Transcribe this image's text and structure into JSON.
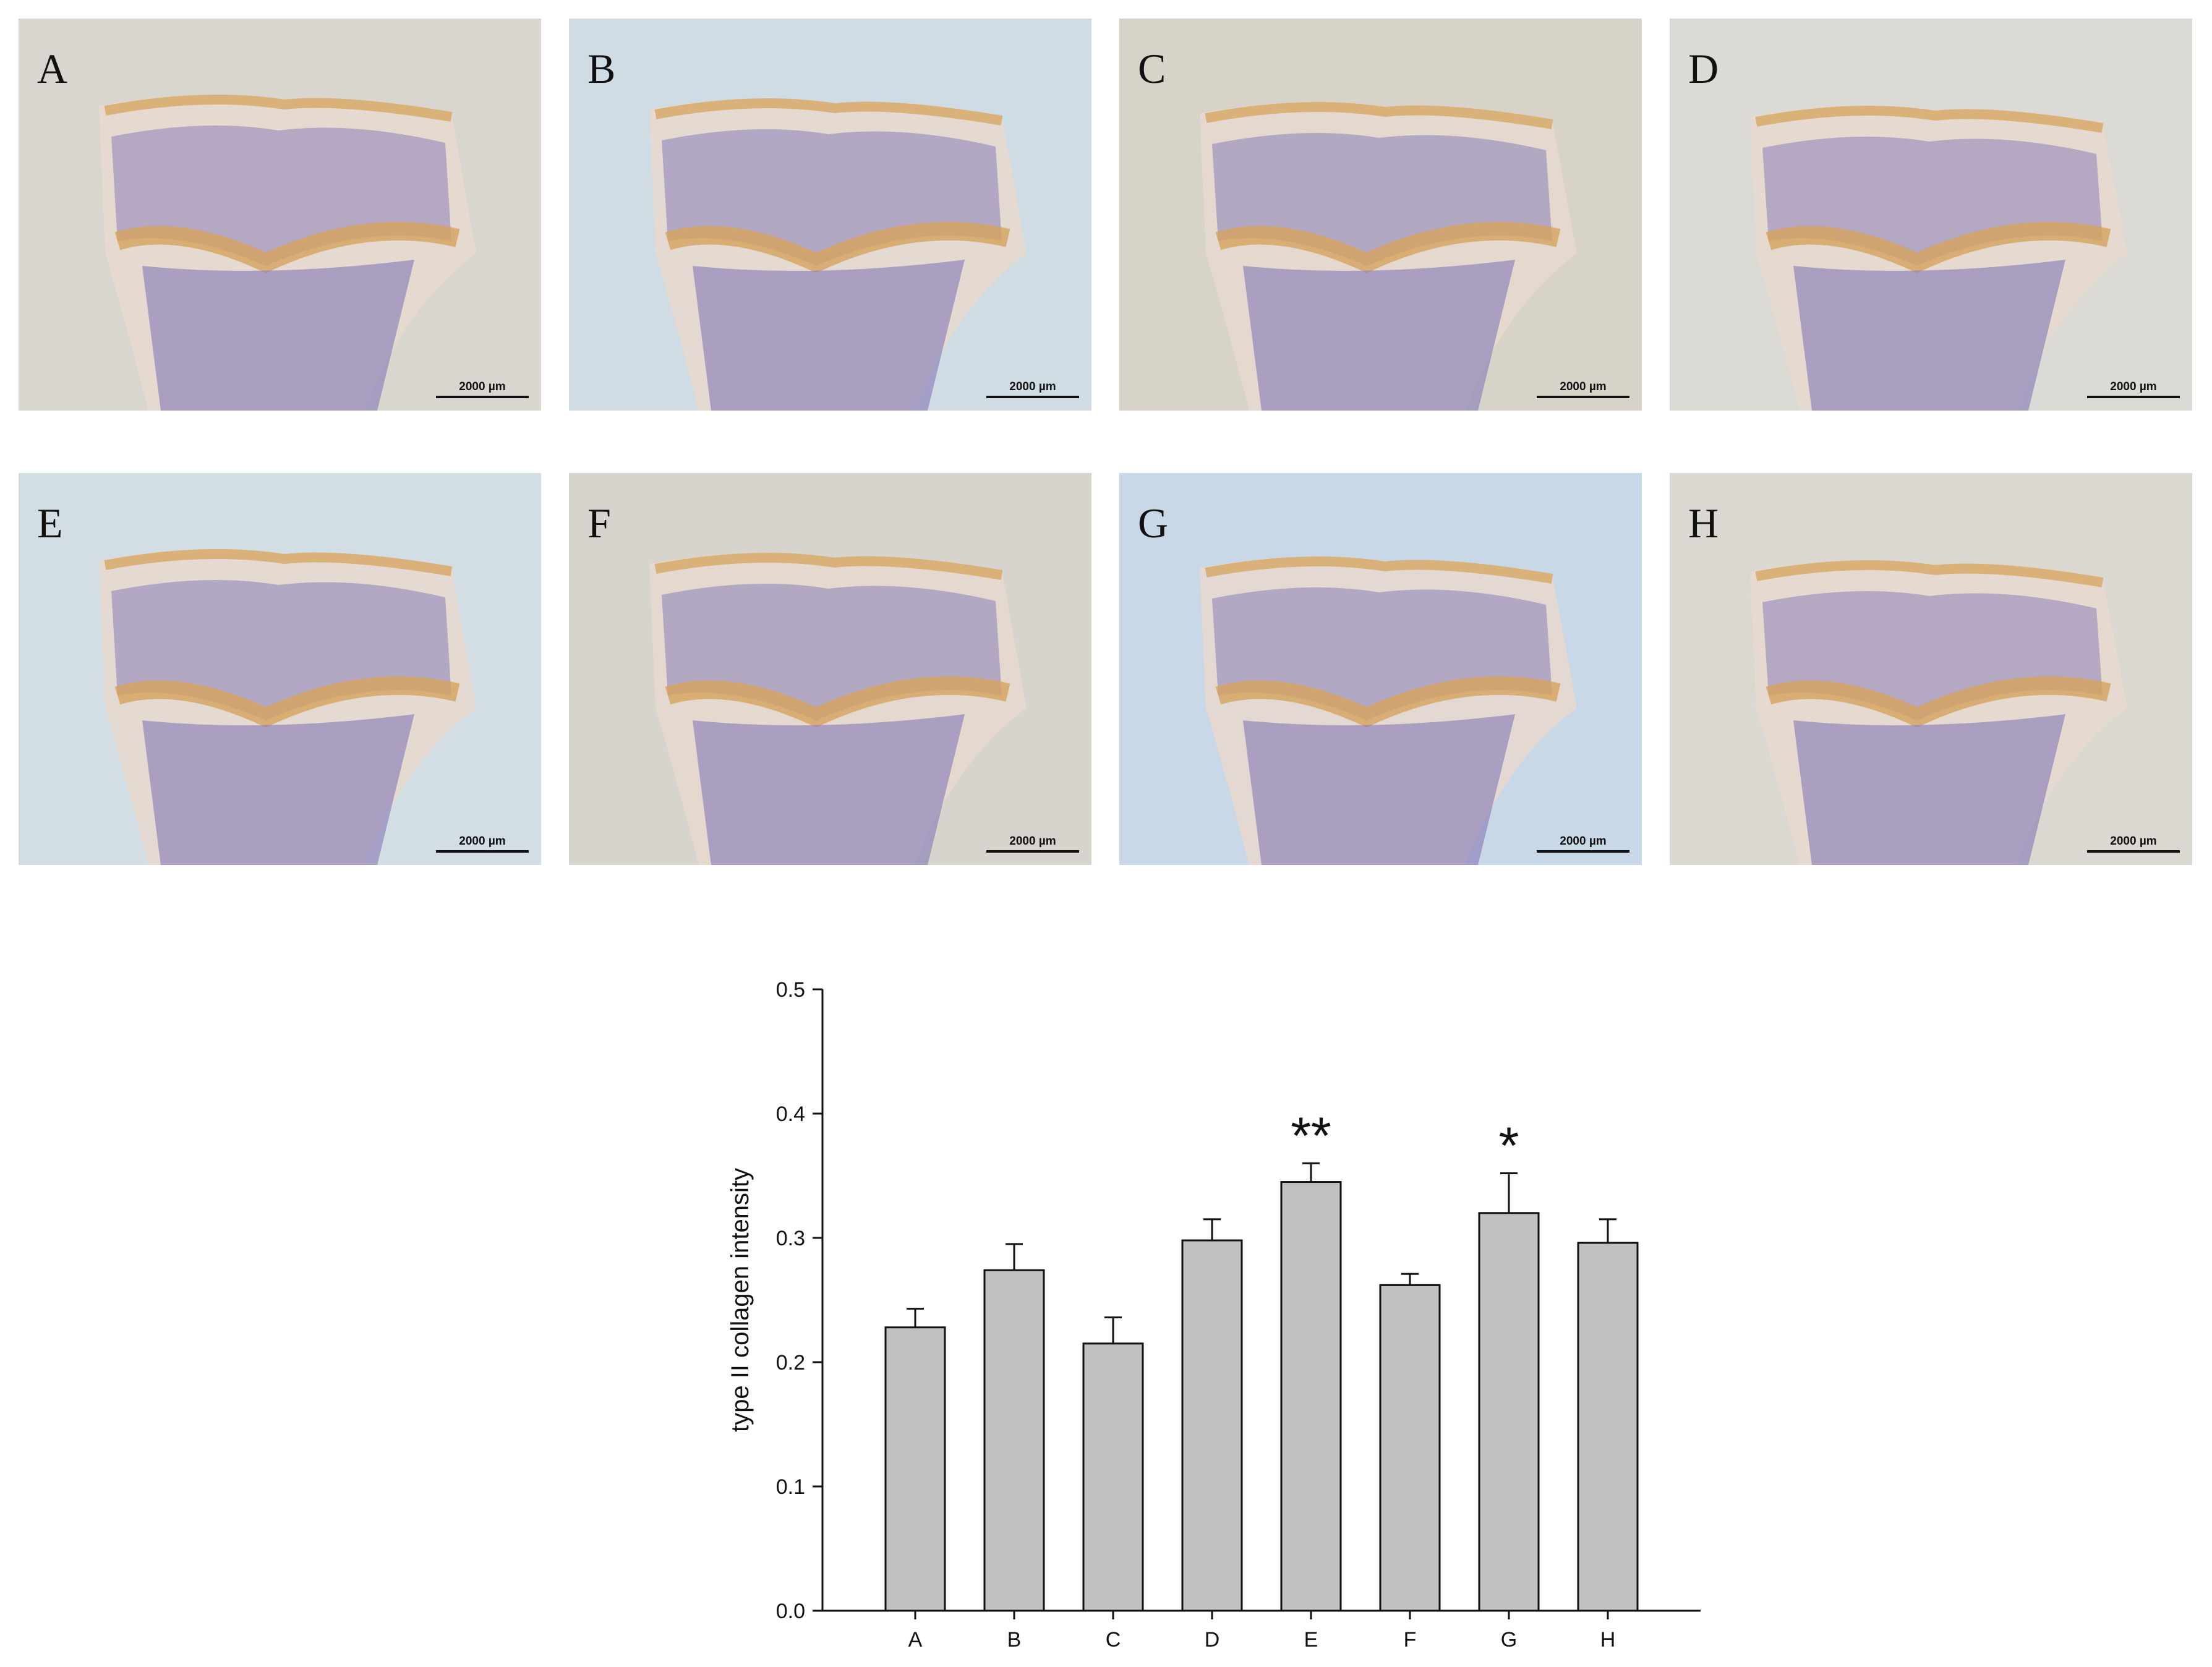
{
  "panels": [
    {
      "letter": "A",
      "scale": "2000 µm",
      "bg": "#d9d5cf"
    },
    {
      "letter": "B",
      "scale": "2000 µm",
      "bg": "#cfdce4"
    },
    {
      "letter": "C",
      "scale": "2000 µm",
      "bg": "#d8d3c8"
    },
    {
      "letter": "D",
      "scale": "2000 µm",
      "bg": "#dcdad4"
    },
    {
      "letter": "E",
      "scale": "2000 µm",
      "bg": "#d3dde4"
    },
    {
      "letter": "F",
      "scale": "2000 µm",
      "bg": "#d7d3cd"
    },
    {
      "letter": "G",
      "scale": "2000 µm",
      "bg": "#c9d8e6"
    },
    {
      "letter": "H",
      "scale": "2000 µm",
      "bg": "#dbd8d2"
    }
  ],
  "colors": {
    "tissue_purple": "#8a7fb8",
    "stain_orange": "#d6a35c",
    "bar_fill": "#c0c0c0"
  },
  "chart_data": {
    "type": "bar",
    "categories": [
      "A",
      "B",
      "C",
      "D",
      "E",
      "F",
      "G",
      "H"
    ],
    "values": [
      0.228,
      0.274,
      0.215,
      0.298,
      0.345,
      0.262,
      0.32,
      0.296
    ],
    "errors": [
      0.015,
      0.021,
      0.021,
      0.017,
      0.015,
      0.009,
      0.032,
      0.019
    ],
    "annotations": [
      "",
      "",
      "",
      "",
      "**",
      "",
      "*",
      ""
    ],
    "ylabel": "type II collagen intensity",
    "ylim": [
      0,
      0.5
    ],
    "yticks": [
      "0.0",
      "0.1",
      "0.2",
      "0.3",
      "0.4",
      "0.5"
    ],
    "grid": false
  }
}
